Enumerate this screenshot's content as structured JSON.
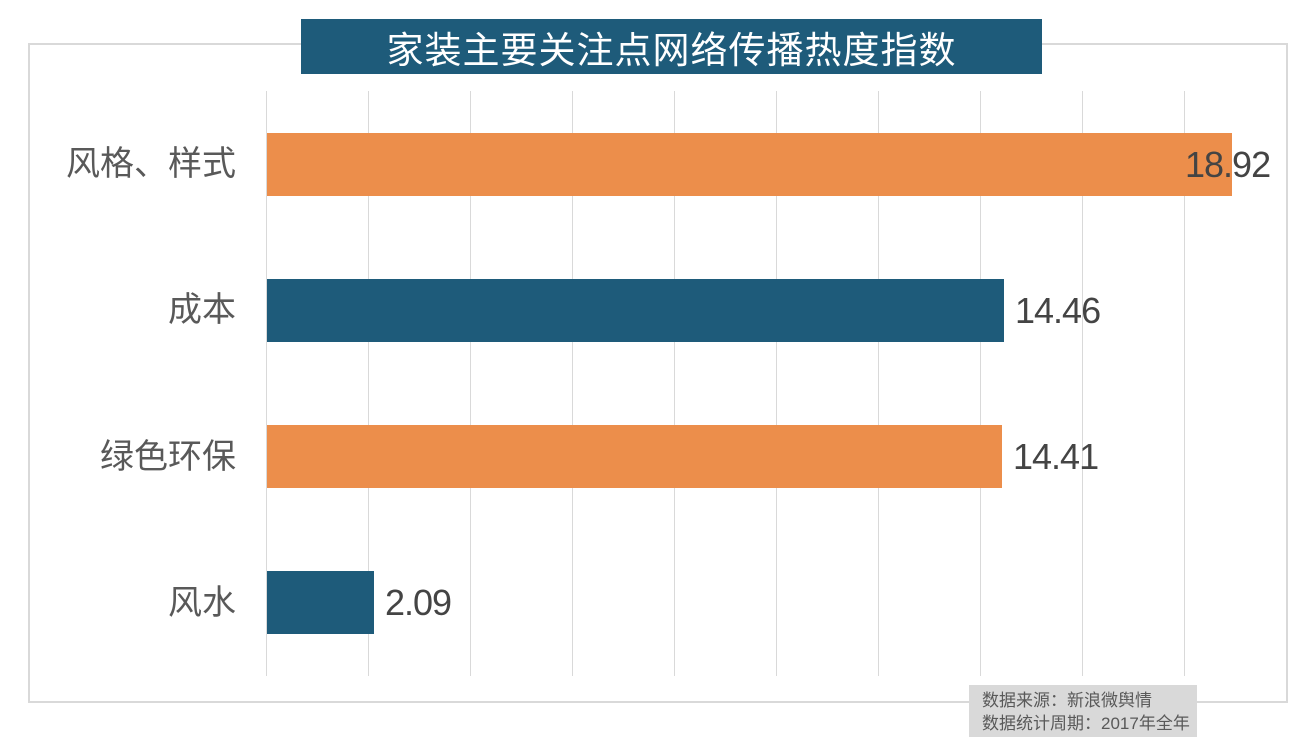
{
  "title": "家装主要关注点网络传播热度指数",
  "chart_data": {
    "type": "bar",
    "orientation": "horizontal",
    "title": "家装主要关注点网络传播热度指数",
    "categories": [
      "风格、样式",
      "成本",
      "绿色环保",
      "风水"
    ],
    "values": [
      18.92,
      14.46,
      14.41,
      2.09
    ],
    "value_labels": [
      "18.92",
      "14.46",
      "14.41",
      "2.09"
    ],
    "bar_colors": [
      "#EC8E4B",
      "#1E5B7A",
      "#EC8E4B",
      "#1E5B7A"
    ],
    "xlabel": "",
    "ylabel": "",
    "xlim": [
      0,
      20
    ],
    "gridline_interval": 2,
    "grid": true,
    "legend": "none"
  },
  "source_note": {
    "line1": "数据来源：新浪微舆情",
    "line2": "数据统计周期：2017年全年"
  },
  "colors": {
    "title_bg": "#1E5B7A",
    "title_text": "#FFFFFF",
    "accent_orange": "#EC8E4B",
    "accent_teal": "#1E5B7A",
    "gridline": "#D9D9D9",
    "frame_border": "#D9D9D9",
    "category_text": "#595959",
    "value_text": "#444444",
    "source_bg": "#D9D9D9",
    "source_text": "#595959"
  }
}
